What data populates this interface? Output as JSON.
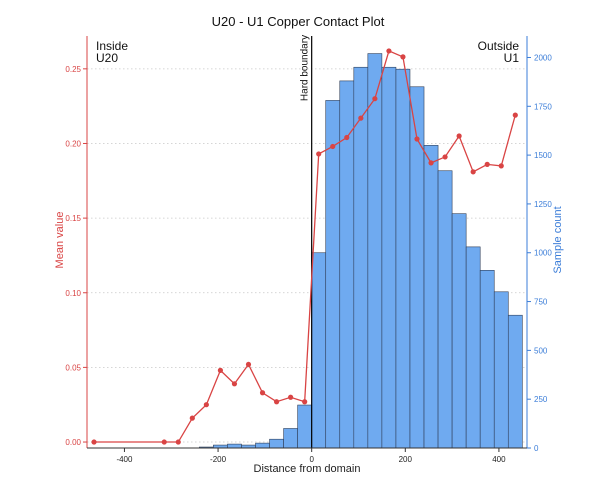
{
  "chart_data": {
    "type": "bar",
    "title": "U20 - U1 Copper Contact Plot",
    "xlabel": "Distance from domain",
    "ylabel_left": "Mean value",
    "ylabel_right": "Sample count",
    "xlim": [
      -480,
      460
    ],
    "ylim_left": [
      -0.004,
      0.272
    ],
    "ylim_right": [
      0,
      2110
    ],
    "x_ticks": [
      -400,
      -200,
      0,
      200,
      400
    ],
    "y_left_ticks": [
      0.0,
      0.05,
      0.1,
      0.15,
      0.2,
      0.25
    ],
    "y_left_tick_labels": [
      "0.00",
      "0.05",
      "0.10",
      "0.15",
      "0.20",
      "0.25"
    ],
    "y_right_ticks": [
      0,
      250,
      500,
      750,
      1000,
      1250,
      1500,
      1750,
      2000
    ],
    "y_right_tick_labels": [
      "0",
      "250",
      "500",
      "750",
      "1000",
      "1250",
      "1500",
      "1750",
      "2000"
    ],
    "grid": true,
    "boundary": {
      "x": 0,
      "label": "Hard boundary"
    },
    "annotations": {
      "inside_label": [
        "Inside",
        "U20"
      ],
      "outside_label": [
        "Outside",
        "U1"
      ]
    },
    "histogram": {
      "series_role": "Sample count",
      "bin_width": 30,
      "bin_starts": [
        -240,
        -210,
        -180,
        -150,
        -120,
        -90,
        -60,
        -30,
        0,
        30,
        60,
        90,
        120,
        150,
        180,
        210,
        240,
        270,
        300,
        330,
        360,
        390,
        420
      ],
      "values": [
        5,
        15,
        20,
        15,
        25,
        45,
        100,
        220,
        1000,
        1780,
        1880,
        1950,
        2020,
        1950,
        1940,
        1850,
        1550,
        1420,
        1200,
        1030,
        910,
        800,
        680
      ]
    },
    "line": {
      "series_role": "Mean value",
      "x": [
        -465,
        -315,
        -285,
        -255,
        -225,
        -195,
        -165,
        -135,
        -105,
        -75,
        -45,
        -15,
        15,
        45,
        75,
        105,
        135,
        165,
        195,
        225,
        255,
        285,
        315,
        345,
        375,
        405,
        435
      ],
      "y": [
        0.0,
        0.0,
        0.0,
        0.016,
        0.025,
        0.048,
        0.039,
        0.052,
        0.033,
        0.027,
        0.03,
        0.027,
        0.193,
        0.198,
        0.204,
        0.217,
        0.23,
        0.262,
        0.258,
        0.203,
        0.187,
        0.191,
        0.205,
        0.181,
        0.186,
        0.185,
        0.219
      ]
    },
    "colors": {
      "line": "#d94444",
      "bar_fill": "#6faaf0",
      "bar_stroke": "#2f3f5a",
      "right_axis": "#3b7dd8",
      "left_axis": "#d94444",
      "grid": "#c8c8c8",
      "boundary": "#000000"
    }
  }
}
